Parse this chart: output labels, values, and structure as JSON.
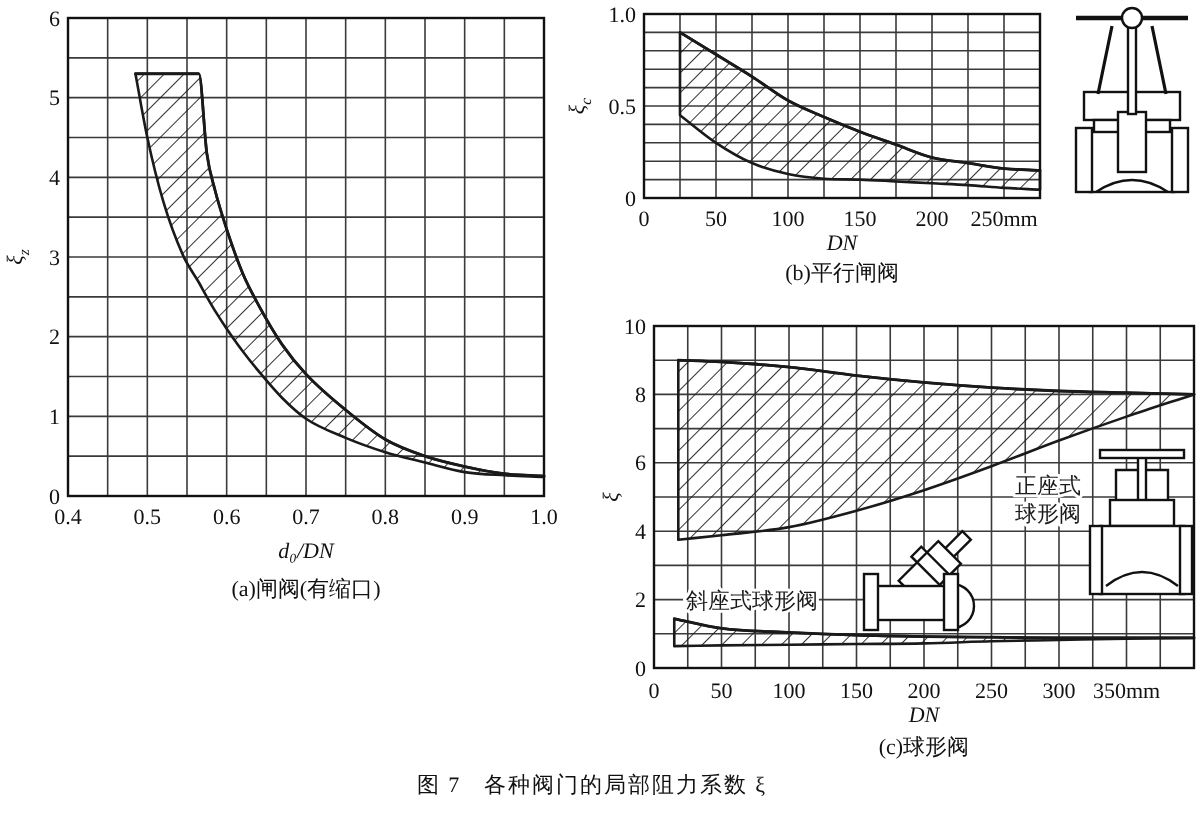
{
  "chart_data": [
    {
      "type": "line",
      "title": "(a)闸阀(有缩口)",
      "xlabel": "d₀/DN",
      "ylabel": "ξ$_{z}$",
      "xlim": [
        0.4,
        1
      ],
      "ylim": [
        0,
        6
      ],
      "xticks": [
        0.4,
        {
          "value": 0.45,
          "label": null
        },
        0.5,
        {
          "value": 0.55,
          "label": null
        },
        0.6,
        {
          "value": 0.65,
          "label": null
        },
        0.7,
        {
          "value": 0.75,
          "label": null
        },
        0.8,
        {
          "value": 0.85,
          "label": null
        },
        0.9,
        {
          "value": 0.95,
          "label": null
        },
        {
          "value": 1,
          "label": "1.0"
        }
      ],
      "yticks": [
        0,
        {
          "value": 0.5,
          "label": null
        },
        1,
        {
          "value": 1.5,
          "label": null
        },
        2,
        {
          "value": 2.5,
          "label": null
        },
        3,
        {
          "value": 3.5,
          "label": null
        },
        4,
        {
          "value": 4.5,
          "label": null
        },
        5,
        {
          "value": 5.5,
          "label": null
        },
        6
      ],
      "grid": true,
      "series": [
        {
          "color": "#1a1a1a",
          "x": [
            0.485,
            0.5,
            0.52,
            0.545,
            0.565,
            0.575,
            0.585,
            0.6,
            0.62,
            0.64,
            0.67,
            0.7,
            0.75,
            0.8,
            0.85,
            0.9,
            0.95,
            1.0
          ],
          "values": [
            5.3,
            5.3,
            5.3,
            5.3,
            5.3,
            4.3,
            3.85,
            3.35,
            2.8,
            2.4,
            1.9,
            1.53,
            1.08,
            0.71,
            0.5,
            0.37,
            0.28,
            0.25
          ],
          "upper": [
            5.3,
            5.3,
            5.3,
            5.3,
            5.3,
            4.3,
            3.85,
            3.35,
            2.8,
            2.4,
            1.9,
            1.53,
            1.08,
            0.71,
            0.5,
            0.37,
            0.28,
            0.25
          ],
          "lower": [
            5.3,
            4.5,
            3.7,
            3.02,
            2.68,
            2.5,
            2.33,
            2.1,
            1.82,
            1.57,
            1.23,
            0.97,
            0.73,
            0.55,
            0.42,
            0.3,
            0.26,
            0.24
          ]
        }
      ]
    },
    {
      "type": "line",
      "title": "(b)平行闸阀",
      "xlabel": "DN",
      "ylabel": "ξ$_{c}$",
      "xlim": [
        0,
        275
      ],
      "ylim": [
        0,
        1
      ],
      "xticks": [
        0,
        {
          "value": 25,
          "label": null
        },
        50,
        {
          "value": 75,
          "label": null
        },
        100,
        {
          "value": 125,
          "label": null
        },
        150,
        {
          "value": 175,
          "label": null
        },
        200,
        {
          "value": 225,
          "label": null
        },
        {
          "value": 250,
          "label": "250mm"
        }
      ],
      "yticks": [
        0,
        {
          "value": 0.1,
          "label": null
        },
        {
          "value": 0.2,
          "label": null
        },
        {
          "value": 0.3,
          "label": null
        },
        {
          "value": 0.4,
          "label": null
        },
        0.5,
        {
          "value": 0.6,
          "label": null
        },
        {
          "value": 0.7,
          "label": null
        },
        {
          "value": 0.8,
          "label": null
        },
        {
          "value": 0.9,
          "label": null
        },
        {
          "value": 1,
          "label": "1.0"
        }
      ],
      "grid": true,
      "series": [
        {
          "color": "#1a1a1a",
          "x": [
            25,
            50,
            75,
            100,
            125,
            150,
            175,
            200,
            225,
            250,
            275
          ],
          "values": [
            0.9,
            0.78,
            0.66,
            0.53,
            0.44,
            0.36,
            0.29,
            0.22,
            0.19,
            0.16,
            0.15
          ],
          "upper": [
            0.9,
            0.78,
            0.66,
            0.53,
            0.44,
            0.36,
            0.29,
            0.22,
            0.19,
            0.16,
            0.15
          ],
          "lower": [
            0.45,
            0.3,
            0.19,
            0.13,
            0.105,
            0.1,
            0.09,
            0.08,
            0.07,
            0.055,
            0.045
          ]
        }
      ]
    },
    {
      "type": "line",
      "title": "(c)球形阀",
      "xlabel": "DN",
      "ylabel": "ξ",
      "xlim": [
        0,
        400
      ],
      "ylim": [
        0,
        10
      ],
      "xticks": [
        0,
        {
          "value": 25,
          "label": null
        },
        50,
        {
          "value": 75,
          "label": null
        },
        100,
        {
          "value": 125,
          "label": null
        },
        150,
        {
          "value": 175,
          "label": null
        },
        200,
        {
          "value": 225,
          "label": null
        },
        250,
        {
          "value": 275,
          "label": null
        },
        300,
        {
          "value": 325,
          "label": null
        },
        {
          "value": 350,
          "label": "350mm"
        },
        {
          "value": 375,
          "label": null
        }
      ],
      "yticks": [
        0,
        {
          "value": 1,
          "label": null
        },
        2,
        {
          "value": 3,
          "label": null
        },
        4,
        {
          "value": 5,
          "label": null
        },
        6,
        {
          "value": 7,
          "label": null
        },
        8,
        {
          "value": 9,
          "label": null
        },
        10
      ],
      "grid": true,
      "series": [
        {
          "name": "正座式球形阀",
          "color": "#1a1a1a",
          "x": [
            18,
            50,
            100,
            150,
            200,
            250,
            300,
            350,
            400
          ],
          "values": [
            9.0,
            8.95,
            8.8,
            8.55,
            8.35,
            8.2,
            8.1,
            8.05,
            8.0
          ],
          "upper": [
            9.0,
            8.95,
            8.8,
            8.55,
            8.35,
            8.2,
            8.1,
            8.05,
            8.0
          ],
          "lower": [
            3.75,
            3.88,
            4.12,
            4.6,
            5.2,
            5.9,
            6.65,
            7.35,
            8.0
          ]
        },
        {
          "name": "斜座式球形阀",
          "color": "#1a1a1a",
          "x": [
            15,
            50,
            100,
            150,
            200,
            250,
            300,
            350,
            400
          ],
          "values": [
            1.44,
            1.16,
            1.04,
            0.96,
            0.92,
            0.9,
            0.88,
            0.88,
            0.88
          ],
          "upper": [
            1.44,
            1.16,
            1.04,
            0.96,
            0.92,
            0.9,
            0.88,
            0.88,
            0.88
          ],
          "lower": [
            0.64,
            0.66,
            0.68,
            0.7,
            0.72,
            0.78,
            0.82,
            0.86,
            0.88
          ]
        }
      ],
      "annotations": [
        "图 7   各种阀门的局部阻力系数 ξ"
      ]
    }
  ]
}
